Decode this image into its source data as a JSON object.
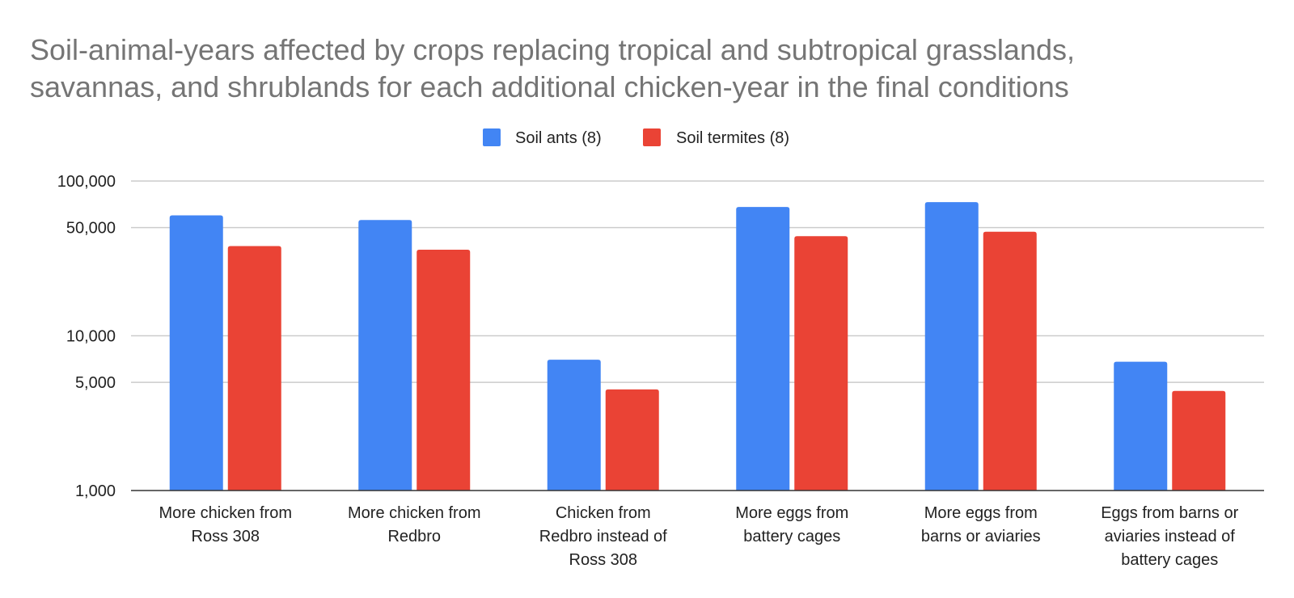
{
  "chart_data": {
    "type": "bar",
    "title_lines": [
      "Soil-animal-years affected by crops replacing tropical and subtropical grasslands,",
      "savannas, and shrublands for each additional chicken-year in the final conditions"
    ],
    "title": "Soil-animal-years affected by crops replacing tropical and subtropical grasslands, savannas, and shrublands for each additional chicken-year in the final conditions",
    "xlabel": "",
    "ylabel": "",
    "y_scale": "log",
    "ylim": [
      1000,
      100000
    ],
    "yticks": [
      1000,
      5000,
      10000,
      50000,
      100000
    ],
    "ytick_labels": [
      "1,000",
      "5,000",
      "10,000",
      "50,000",
      "100,000"
    ],
    "grid": true,
    "legend_position": "top-center",
    "categories": [
      [
        "More chicken from",
        "Ross 308"
      ],
      [
        "More chicken from",
        "Redbro"
      ],
      [
        "Chicken from",
        "Redbro instead of",
        "Ross 308"
      ],
      [
        "More eggs from",
        "battery cages"
      ],
      [
        "More eggs from",
        "barns or aviaries"
      ],
      [
        "Eggs from barns or",
        "aviaries instead of",
        "battery cages"
      ]
    ],
    "series": [
      {
        "name": "Soil ants (8)",
        "color": "#4285f4",
        "values": [
          60000,
          56000,
          7000,
          68000,
          73000,
          6800
        ]
      },
      {
        "name": "Soil termites (8)",
        "color": "#ea4335",
        "values": [
          38000,
          36000,
          4500,
          44000,
          47000,
          4400
        ]
      }
    ]
  }
}
